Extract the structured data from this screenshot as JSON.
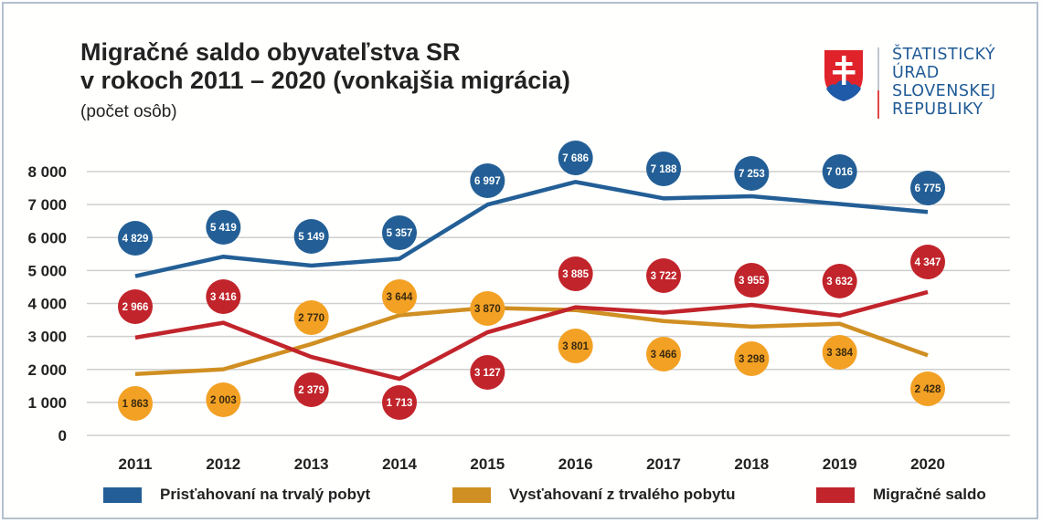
{
  "header": {
    "title_line1": "Migračné saldo obyvateľstva SR",
    "title_line2": "v rokoch 2011 – 2020 (vonkajšia migrácia)",
    "subtitle": "(počet osôb)"
  },
  "logo": {
    "icon": "slovak-coat-of-arms-icon",
    "line1": "ŠTATISTICKÝ",
    "line2": "ÚRAD",
    "line3": "SLOVENSKEJ",
    "line4": "REPUBLIKY"
  },
  "chart_data": {
    "type": "line",
    "title": "Migračné saldo obyvateľstva SR v rokoch 2011 – 2020 (vonkajšia migrácia)",
    "subtitle": "(počet osôb)",
    "xlabel": "",
    "ylabel": "",
    "x": [
      "2011",
      "2012",
      "2013",
      "2014",
      "2015",
      "2016",
      "2017",
      "2018",
      "2019",
      "2020"
    ],
    "ylim": [
      0,
      8000
    ],
    "yticks": [
      0,
      1000,
      2000,
      3000,
      4000,
      5000,
      6000,
      7000,
      8000
    ],
    "ytick_labels": [
      "0",
      "1 000",
      "2 000",
      "3 000",
      "4 000",
      "5 000",
      "6 000",
      "7 000",
      "8 000"
    ],
    "grid": true,
    "legend_position": "bottom",
    "series": [
      {
        "name": "Prisťahovaní na trvalý pobyt",
        "color": "#235f96",
        "label_text_color": "#ffffff",
        "values": [
          4829,
          5419,
          5149,
          5357,
          6997,
          7686,
          7188,
          7253,
          7016,
          6775
        ],
        "labels": [
          "4 829",
          "5 419",
          "5 149",
          "5 357",
          "6 997",
          "7 686",
          "7 188",
          "7 253",
          "7 016",
          "6 775"
        ]
      },
      {
        "name": "Vysťahovaní z trvalého pobytu",
        "color": "#d08f22",
        "bubble_color": "#f2a124",
        "label_text_color": "#3a2a10",
        "values": [
          1863,
          2003,
          2770,
          3644,
          3870,
          3801,
          3466,
          3298,
          3384,
          2428
        ],
        "labels": [
          "1 863",
          "2 003",
          "2 770",
          "3 644",
          "3 870",
          "3 801",
          "3 466",
          "3 298",
          "3 384",
          "2 428"
        ]
      },
      {
        "name": "Migračné saldo",
        "color": "#c1242b",
        "label_text_color": "#ffffff",
        "values": [
          2966,
          3416,
          2379,
          1713,
          3127,
          3885,
          3722,
          3955,
          3632,
          4347
        ],
        "labels": [
          "2 966",
          "3 416",
          "2 379",
          "1 713",
          "3 127",
          "3 885",
          "3 722",
          "3 955",
          "3 632",
          "4 347"
        ]
      }
    ]
  }
}
